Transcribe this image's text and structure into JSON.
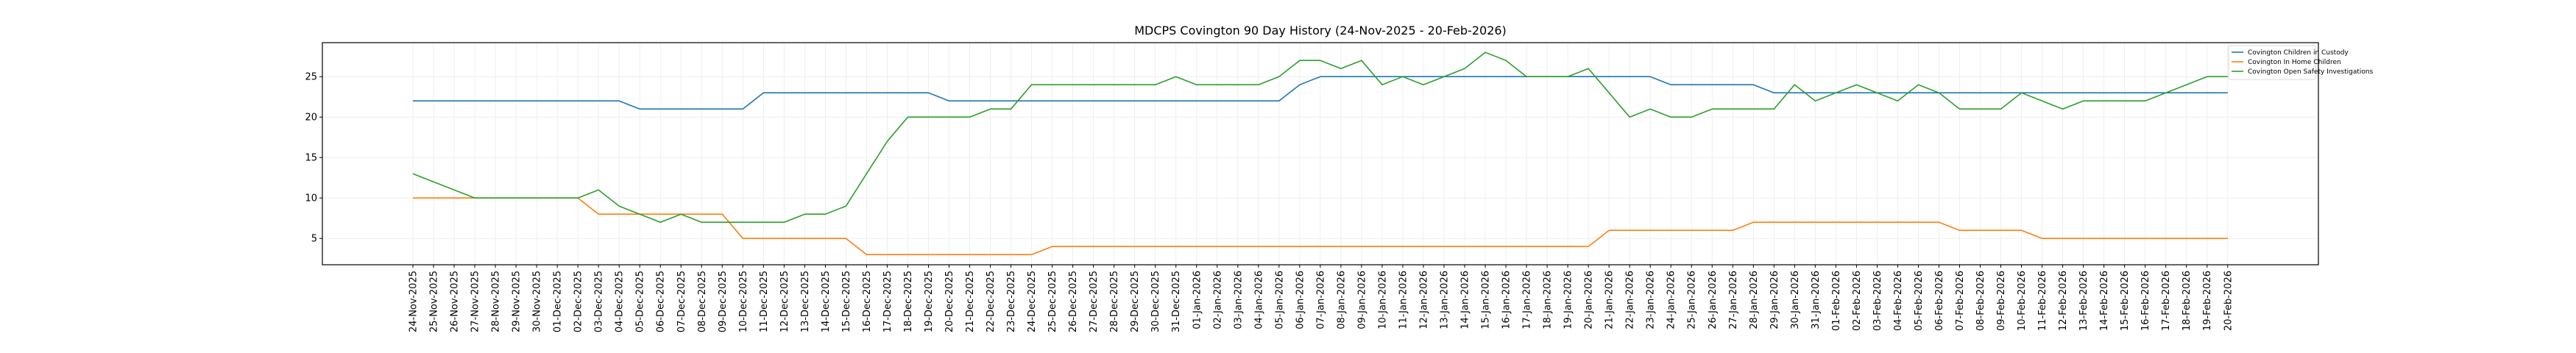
{
  "chart_data": {
    "type": "line",
    "title": "MDCPS Covington 90 Day History (24-Nov-2025 - 20-Feb-2026)",
    "xlabel": "",
    "ylabel": "",
    "ylim": [
      1.75,
      29.2
    ],
    "yticks": [
      5,
      10,
      15,
      20,
      25
    ],
    "grid": true,
    "legend_position": "top-right",
    "x": [
      "24-Nov-2025",
      "25-Nov-2025",
      "26-Nov-2025",
      "27-Nov-2025",
      "28-Nov-2025",
      "29-Nov-2025",
      "30-Nov-2025",
      "01-Dec-2025",
      "02-Dec-2025",
      "03-Dec-2025",
      "04-Dec-2025",
      "05-Dec-2025",
      "06-Dec-2025",
      "07-Dec-2025",
      "08-Dec-2025",
      "09-Dec-2025",
      "10-Dec-2025",
      "11-Dec-2025",
      "12-Dec-2025",
      "13-Dec-2025",
      "14-Dec-2025",
      "15-Dec-2025",
      "16-Dec-2025",
      "17-Dec-2025",
      "18-Dec-2025",
      "19-Dec-2025",
      "20-Dec-2025",
      "21-Dec-2025",
      "22-Dec-2025",
      "23-Dec-2025",
      "24-Dec-2025",
      "25-Dec-2025",
      "26-Dec-2025",
      "27-Dec-2025",
      "28-Dec-2025",
      "29-Dec-2025",
      "30-Dec-2025",
      "31-Dec-2025",
      "01-Jan-2026",
      "02-Jan-2026",
      "03-Jan-2026",
      "04-Jan-2026",
      "05-Jan-2026",
      "06-Jan-2026",
      "07-Jan-2026",
      "08-Jan-2026",
      "09-Jan-2026",
      "10-Jan-2026",
      "11-Jan-2026",
      "12-Jan-2026",
      "13-Jan-2026",
      "14-Jan-2026",
      "15-Jan-2026",
      "16-Jan-2026",
      "17-Jan-2026",
      "18-Jan-2026",
      "19-Jan-2026",
      "20-Jan-2026",
      "21-Jan-2026",
      "22-Jan-2026",
      "23-Jan-2026",
      "24-Jan-2026",
      "25-Jan-2026",
      "26-Jan-2026",
      "27-Jan-2026",
      "28-Jan-2026",
      "29-Jan-2026",
      "30-Jan-2026",
      "31-Jan-2026",
      "01-Feb-2026",
      "02-Feb-2026",
      "03-Feb-2026",
      "04-Feb-2026",
      "05-Feb-2026",
      "06-Feb-2026",
      "07-Feb-2026",
      "08-Feb-2026",
      "09-Feb-2026",
      "10-Feb-2026",
      "11-Feb-2026",
      "12-Feb-2026",
      "13-Feb-2026",
      "14-Feb-2026",
      "15-Feb-2026",
      "16-Feb-2026",
      "17-Feb-2026",
      "18-Feb-2026",
      "19-Feb-2026",
      "20-Feb-2026"
    ],
    "series": [
      {
        "name": "Covington Children in Custody",
        "color": "#1f77b4",
        "values": [
          22,
          22,
          22,
          22,
          22,
          22,
          22,
          22,
          22,
          22,
          22,
          21,
          21,
          21,
          21,
          21,
          21,
          23,
          23,
          23,
          23,
          23,
          23,
          23,
          23,
          23,
          22,
          22,
          22,
          22,
          22,
          22,
          22,
          22,
          22,
          22,
          22,
          22,
          22,
          22,
          22,
          22,
          22,
          24,
          25,
          25,
          25,
          25,
          25,
          25,
          25,
          25,
          25,
          25,
          25,
          25,
          25,
          25,
          25,
          25,
          25,
          24,
          24,
          24,
          24,
          24,
          23,
          23,
          23,
          23,
          23,
          23,
          23,
          23,
          23,
          23,
          23,
          23,
          23,
          23,
          23,
          23,
          23,
          23,
          23,
          23,
          23,
          23,
          23
        ]
      },
      {
        "name": "Covington In Home Children",
        "color": "#ff7f0e",
        "values": [
          10,
          10,
          10,
          10,
          10,
          10,
          10,
          10,
          10,
          8,
          8,
          8,
          8,
          8,
          8,
          8,
          5,
          5,
          5,
          5,
          5,
          5,
          3,
          3,
          3,
          3,
          3,
          3,
          3,
          3,
          3,
          4,
          4,
          4,
          4,
          4,
          4,
          4,
          4,
          4,
          4,
          4,
          4,
          4,
          4,
          4,
          4,
          4,
          4,
          4,
          4,
          4,
          4,
          4,
          4,
          4,
          4,
          4,
          6,
          6,
          6,
          6,
          6,
          6,
          6,
          7,
          7,
          7,
          7,
          7,
          7,
          7,
          7,
          7,
          7,
          6,
          6,
          6,
          6,
          5,
          5,
          5,
          5,
          5,
          5,
          5,
          5,
          5,
          5
        ]
      },
      {
        "name": "Covington Open Safety Investigations",
        "color": "#2ca02c",
        "values": [
          13,
          12,
          11,
          10,
          10,
          10,
          10,
          10,
          10,
          11,
          9,
          8,
          7,
          8,
          7,
          7,
          7,
          7,
          7,
          8,
          8,
          9,
          13,
          17,
          20,
          20,
          20,
          20,
          21,
          21,
          24,
          24,
          24,
          24,
          24,
          24,
          24,
          25,
          24,
          24,
          24,
          24,
          25,
          27,
          27,
          26,
          27,
          24,
          25,
          24,
          25,
          26,
          28,
          27,
          25,
          25,
          25,
          26,
          23,
          20,
          21,
          20,
          20,
          21,
          21,
          21,
          21,
          24,
          22,
          23,
          24,
          23,
          22,
          24,
          23,
          21,
          21,
          21,
          23,
          22,
          21,
          22,
          22,
          22,
          22,
          23,
          24,
          25,
          25
        ]
      }
    ]
  }
}
